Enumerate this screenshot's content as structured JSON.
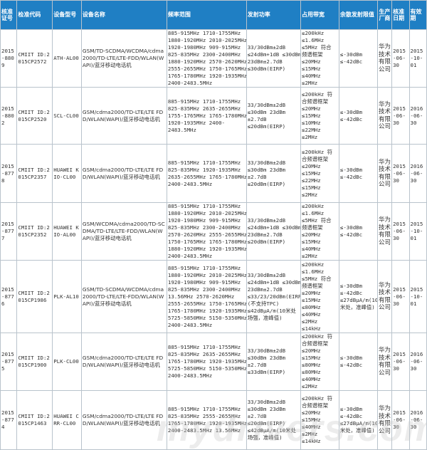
{
  "headers": [
    "核准证号",
    "检准代码",
    "设备型号",
    "设备名称",
    "频率范围",
    "发射功率",
    "占用带宽",
    "余散发射限值",
    "生产厂商",
    "核准日期",
    "有效期"
  ],
  "rows": [
    {
      "cert": "2015-8809",
      "code": "CMIIT ID:2015CP2572",
      "model": "ATH-AL00",
      "name": "GSM/TD-SCDMA/WCDMA/cdma2000/TD-LTE/LTE-FDD/WLAN(WAPI)/蓝牙移动电话机",
      "freq": [
        "885-915MHz 1710-1755MHz",
        "1880-1920MHz 2010-2025MHz",
        "1920-1980MHz 909-915MHz",
        "825-835MHz 2300-2400MHz",
        "1880-1920MHz 2570-2620MHz",
        "2555-2655MHz 1750-1765MHz",
        "1765-1780MHz 1920-1935MHz",
        "2400-2483.5MHz"
      ],
      "power": [
        "33/30dBm±2dB",
        "≤24dBm+1dB ≤30dBm",
        "23dBm±2.7dB",
        "≤30dBm(EIRP)"
      ],
      "bw": [
        "≤200kHz",
        "≤1.6MHz",
        "≤5MHz 符合",
        "频谱框架",
        "≤20MHz",
        "≤15MHz",
        "≤40MHz",
        "≤2MHz"
      ],
      "spur": [
        "≤-30dBm",
        "≤-42dBc"
      ],
      "maker": "华为技术有限公司",
      "date": "2015-06-30",
      "expiry": "2015-10-01"
    },
    {
      "cert": "2015-8802",
      "code": "CMIIT ID:2015CP2520",
      "model": "SCL-CL00",
      "name": "GSM/cdma2000/TD-LTE/LTE FDD/WLAN(WAPI)/蓝牙移动电话机",
      "freq": [
        "885-915MHz 1710-1755MHz",
        "825-835MHz 2635-2655MHz",
        "1755-1765MHz 1765-1780MHz",
        "1920-1935MHz 2400-",
        "2483.5MHz"
      ],
      "power": [
        "33/30dBm±2dB",
        "≤30dBm 23dBm",
        "±2.7dB",
        "≤20dBm(EIRP)"
      ],
      "bw": [
        "≤200kHz 符",
        "合频谱框架",
        "≤20MHz",
        "≤15MHz",
        "≤10MHz",
        "≤22MHz",
        "≤2MHz"
      ],
      "spur": [
        "≤-30dBm",
        "≤-42dBc"
      ],
      "maker": "华为技术有限公司",
      "date": "2015-06-30",
      "expiry": "2016-06-30"
    },
    {
      "cert": "2015-8778",
      "code": "CMIIT ID:2015CP2357",
      "model": "HUAWEI KIO-CL00",
      "name": "GSM/cdma2000/TD-LTE/LTE FDD/WLAN(WAPI)/蓝牙移动电话机",
      "freq": [
        "885-915MHz 1710-1755MHz",
        "825-835MHz 1920-1935MHz",
        "2635-2655MHz 1765-1780MHz",
        "2400-2483.5MHz"
      ],
      "power": [
        "33/30dBm±2dB",
        "≤30dBm 23dBm",
        "±2.7dB",
        "≤20dBm(EIRP)"
      ],
      "bw": [
        "≤200kHz 符",
        "合频谱框架",
        "≤20MHz",
        "≤15MHz",
        "≤22MHz",
        "≤15MHz",
        "≤2MHz"
      ],
      "spur": [
        "≤-30dBm",
        "≤-42dBc"
      ],
      "maker": "华为技术有限公司",
      "date": "2015-06-30",
      "expiry": "2016-06-30"
    },
    {
      "cert": "2015-8777",
      "code": "CMIIT ID:2015CP2352",
      "model": "HUAWEI KIO-AL00",
      "name": "GSM/WCDMA/cdma2000/TD-SCDMA/TD-LTE/LTE-FDD/WLAN(WAPI)/蓝牙移动电话机",
      "freq": [
        "885-915MHz 1710-1755MHz",
        "1880-1920MHz 2010-2025MHz",
        "1920-1980MHz 909-915MHz",
        "825-835MHz 2300-2400MHz",
        "2570-2620MHz 2555-2655MHz",
        "1750-1765MHz 1765-1780MHz",
        "1880-1920MHz 1920-1935MHz",
        "2400-2483.5MHz"
      ],
      "power": [
        "33/30dBm±2dB",
        "≤24dBm+1dB ≤30dBm",
        "23dBm±2.7dB",
        "≤20dBm(EIRP)"
      ],
      "bw": [
        "≤200kHz",
        "≤1.6MHz",
        "≤5MHz 符合",
        "频谱框架",
        "≤20MHz",
        "≤15MHz",
        "≤40MHz",
        "≤2MHz"
      ],
      "spur": [
        "≤-30dBm",
        "≤-42dBc"
      ],
      "maker": "华为技术有限公司",
      "date": "2015-06-30",
      "expiry": "2015-10-01"
    },
    {
      "cert": "2015-8776",
      "code": "CMIIT ID:2015CP1986",
      "model": "PLK-AL10",
      "name": "GSM/TD-SCDMA/WCDMA/cdma2000/TD-LTE/LTE-FDD/WLAN(WAPI)/蓝牙移动电话机",
      "freq": [
        "885-915MHz 1710-1755MHz",
        "1880-1920MHz 2010-2025MHz",
        "1920-1980MHz 909-915MHz",
        "825-835MHz 2300-2400MHz",
        "13.56MHz 2570-2620MHz",
        "2555-2655MHz 1750-1765MHz",
        "1765-1780MHz 1920-1935MHz",
        "5725-5850MHz 5150-5350MHz",
        "2400-2483.5MHz"
      ],
      "power": [
        "33/30dBm±2dB",
        "≤24dBm+1dB ≤30dBm",
        "23dBm±2.7dB",
        "≤33/23/20dBm(EIRP)",
        "(不支持TPC)",
        "≤42dBμA/m(10米处",
        "场强，准峰值)"
      ],
      "bw": [
        "≤200kHz",
        "≤1.6MHz",
        "≤5MHz 符合",
        "频谱框架",
        "≤20MHz",
        "≤15MHz",
        "≤80MHz",
        "≤40MHz",
        "≤2MHz",
        "≤14kHz"
      ],
      "spur": [
        "≤-30dBm",
        "≤-42dBc",
        "≤27dBμA/m(10",
        "米处，准峰值)"
      ],
      "maker": "华为技术有限公司",
      "date": "2015-06-30",
      "expiry": "2015-10-01"
    },
    {
      "cert": "2015-8775",
      "code": "CMIIT ID:2015CP1900",
      "model": "PLK-CL00",
      "name": "GSM/cdma2000/TD-LTE/LTE FDD/WLAN(WAPI)/蓝牙移动电话机",
      "freq": [
        "885-915MHz 1710-1755MHz",
        "825-835MHz 2635-2655MHz",
        "1765-1780MHz 1920-1935MHz",
        "5725-5850MHz 5150-5350MHz",
        "2400-2483.5MHz"
      ],
      "power": [
        "33/30dBm±2dB",
        "≤30dBm 23dBm",
        "±2.7dB",
        "≤33dBm(EIRP)"
      ],
      "bw": [
        "≤200kHz 符",
        "合频谱框架",
        "≤20MHz",
        "≤15MHz",
        "≤80MHz",
        "≤80MHz",
        "≤40MHz",
        "≤2MHz"
      ],
      "spur": [
        "≤-30dBm",
        "≤-42dBc"
      ],
      "maker": "华为技术有限公司",
      "date": "2015-06-30",
      "expiry": "2016-06-30"
    },
    {
      "cert": "2015-8774",
      "code": "CMIIT ID:2015CP1463",
      "model": "HUAWEI CRR-CL00",
      "name": "GSM/cdma2000/TD-LTE/LTE FDD/WLAN(WAPI)/蓝牙移动电话机",
      "freq": [
        "885-915MHz 1710-1755MHz",
        "825-835MHz 2555-2655MHz",
        "1765-1780MHz 1920-1935MHz",
        "2400-2483.5MHz 13.56MHz"
      ],
      "power": [
        "33/30dBm±2dB",
        "≤30dBm 23dBm",
        "±2.7dB",
        "≤20dBm(EIRP)",
        "≤42dBμA/m(10米处",
        "场强，准峰值)"
      ],
      "bw": [
        "≤200kHz 符",
        "合频谱框架",
        "≤20MHz",
        "≤15MHz",
        "≤40MHz",
        "≤2MHz",
        "≤14kHz"
      ],
      "spur": [
        "≤-30dBm",
        "≤-42dBc",
        "≤27dBμA/m(10",
        "米处，准峰值)"
      ],
      "maker": "华为技术有限公司",
      "date": "2015-06-30",
      "expiry": "2016-06-30"
    }
  ],
  "watermark": "mydrivers.com"
}
